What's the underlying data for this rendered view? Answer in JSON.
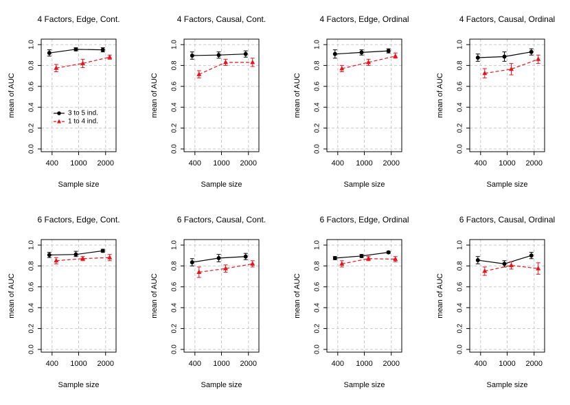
{
  "figure": {
    "ylabel": "mean of AUC",
    "xlabel": "Sample size"
  },
  "legend": {
    "entries": [
      {
        "label": "3 to 5 ind.",
        "color": "#000000",
        "marker": "circle"
      },
      {
        "label": "1 to 4 ind.",
        "color": "#e8121b",
        "marker": "triangle"
      }
    ]
  },
  "chart_data": [
    {
      "type": "line",
      "title": "4 Factors, Edge, Cont.",
      "xlabel": "Sample size",
      "ylabel": "mean of AUC",
      "categories": [
        "400",
        "1000",
        "2000"
      ],
      "ylim": [
        0,
        1
      ],
      "yticks": [
        "0.0",
        "0.2",
        "0.4",
        "0.6",
        "0.8",
        "1.0"
      ],
      "legend": "center-left",
      "series": [
        {
          "name": "3 to 5 ind.",
          "values": [
            0.92,
            0.955,
            0.95
          ],
          "lower": [
            0.89,
            0.94,
            0.93
          ],
          "upper": [
            0.95,
            0.97,
            0.97
          ]
        },
        {
          "name": "1 to 4 ind.",
          "values": [
            0.775,
            0.82,
            0.88
          ],
          "lower": [
            0.74,
            0.78,
            0.86
          ],
          "upper": [
            0.81,
            0.86,
            0.9
          ]
        }
      ]
    },
    {
      "type": "line",
      "title": "4 Factors, Causal, Cont.",
      "xlabel": "Sample size",
      "ylabel": "mean of AUC",
      "categories": [
        "400",
        "1000",
        "2000"
      ],
      "ylim": [
        0,
        1
      ],
      "yticks": [
        "0.0",
        "0.2",
        "0.4",
        "0.6",
        "0.8",
        "1.0"
      ],
      "series": [
        {
          "name": "3 to 5 ind.",
          "values": [
            0.895,
            0.9,
            0.91
          ],
          "lower": [
            0.86,
            0.87,
            0.88
          ],
          "upper": [
            0.93,
            0.93,
            0.94
          ]
        },
        {
          "name": "1 to 4 ind.",
          "values": [
            0.715,
            0.83,
            0.83
          ],
          "lower": [
            0.68,
            0.8,
            0.79
          ],
          "upper": [
            0.75,
            0.86,
            0.87
          ]
        }
      ]
    },
    {
      "type": "line",
      "title": "4 Factors, Edge, Ordinal",
      "xlabel": "Sample size",
      "ylabel": "mean of AUC",
      "categories": [
        "400",
        "1000",
        "2000"
      ],
      "ylim": [
        0,
        1
      ],
      "yticks": [
        "0.0",
        "0.2",
        "0.4",
        "0.6",
        "0.8",
        "1.0"
      ],
      "series": [
        {
          "name": "3 to 5 ind.",
          "values": [
            0.91,
            0.925,
            0.94
          ],
          "lower": [
            0.87,
            0.9,
            0.92
          ],
          "upper": [
            0.95,
            0.95,
            0.96
          ]
        },
        {
          "name": "1 to 4 ind.",
          "values": [
            0.77,
            0.83,
            0.89
          ],
          "lower": [
            0.74,
            0.8,
            0.87
          ],
          "upper": [
            0.8,
            0.86,
            0.92
          ]
        }
      ]
    },
    {
      "type": "line",
      "title": "4 Factors, Causal, Ordinal",
      "xlabel": "Sample size",
      "ylabel": "mean of AUC",
      "categories": [
        "400",
        "1000",
        "2000"
      ],
      "ylim": [
        0,
        1
      ],
      "yticks": [
        "0.0",
        "0.2",
        "0.4",
        "0.6",
        "0.8",
        "1.0"
      ],
      "series": [
        {
          "name": "3 to 5 ind.",
          "values": [
            0.875,
            0.885,
            0.93
          ],
          "lower": [
            0.84,
            0.84,
            0.9
          ],
          "upper": [
            0.91,
            0.93,
            0.96
          ]
        },
        {
          "name": "1 to 4 ind.",
          "values": [
            0.725,
            0.765,
            0.86
          ],
          "lower": [
            0.68,
            0.71,
            0.82
          ],
          "upper": [
            0.77,
            0.82,
            0.9
          ]
        }
      ]
    },
    {
      "type": "line",
      "title": "6 Factors, Edge, Cont.",
      "xlabel": "Sample size",
      "ylabel": "mean of AUC",
      "categories": [
        "400",
        "1000",
        "2000"
      ],
      "ylim": [
        0,
        1
      ],
      "yticks": [
        "0.0",
        "0.2",
        "0.4",
        "0.6",
        "0.8",
        "1.0"
      ],
      "series": [
        {
          "name": "3 to 5 ind.",
          "values": [
            0.905,
            0.91,
            0.945
          ],
          "lower": [
            0.88,
            0.89,
            0.93
          ],
          "upper": [
            0.93,
            0.94,
            0.96
          ]
        },
        {
          "name": "1 to 4 ind.",
          "values": [
            0.85,
            0.87,
            0.88
          ],
          "lower": [
            0.82,
            0.85,
            0.85
          ],
          "upper": [
            0.88,
            0.89,
            0.91
          ]
        }
      ]
    },
    {
      "type": "line",
      "title": "6 Factors, Causal, Cont.",
      "xlabel": "Sample size",
      "ylabel": "mean of AUC",
      "categories": [
        "400",
        "1000",
        "2000"
      ],
      "ylim": [
        0,
        1
      ],
      "yticks": [
        "0.0",
        "0.2",
        "0.4",
        "0.6",
        "0.8",
        "1.0"
      ],
      "series": [
        {
          "name": "3 to 5 ind.",
          "values": [
            0.835,
            0.875,
            0.89
          ],
          "lower": [
            0.8,
            0.84,
            0.86
          ],
          "upper": [
            0.87,
            0.91,
            0.92
          ]
        },
        {
          "name": "1 to 4 ind.",
          "values": [
            0.74,
            0.775,
            0.82
          ],
          "lower": [
            0.69,
            0.74,
            0.79
          ],
          "upper": [
            0.79,
            0.81,
            0.85
          ]
        }
      ]
    },
    {
      "type": "line",
      "title": "6 Factors, Edge, Ordinal",
      "xlabel": "Sample size",
      "ylabel": "mean of AUC",
      "categories": [
        "400",
        "1000",
        "2000"
      ],
      "ylim": [
        0,
        1
      ],
      "yticks": [
        "0.0",
        "0.2",
        "0.4",
        "0.6",
        "0.8",
        "1.0"
      ],
      "series": [
        {
          "name": "3 to 5 ind.",
          "values": [
            0.875,
            0.895,
            0.93
          ],
          "lower": [
            0.86,
            0.88,
            0.92
          ],
          "upper": [
            0.89,
            0.91,
            0.94
          ]
        },
        {
          "name": "1 to 4 ind.",
          "values": [
            0.82,
            0.87,
            0.865
          ],
          "lower": [
            0.79,
            0.85,
            0.84
          ],
          "upper": [
            0.85,
            0.89,
            0.89
          ]
        }
      ]
    },
    {
      "type": "line",
      "title": "6 Factors, Causal, Ordinal",
      "xlabel": "Sample size",
      "ylabel": "mean of AUC",
      "categories": [
        "400",
        "1000",
        "2000"
      ],
      "ylim": [
        0,
        1
      ],
      "yticks": [
        "0.0",
        "0.2",
        "0.4",
        "0.6",
        "0.8",
        "1.0"
      ],
      "series": [
        {
          "name": "3 to 5 ind.",
          "values": [
            0.855,
            0.82,
            0.9
          ],
          "lower": [
            0.82,
            0.79,
            0.87
          ],
          "upper": [
            0.89,
            0.85,
            0.93
          ]
        },
        {
          "name": "1 to 4 ind.",
          "values": [
            0.75,
            0.805,
            0.775
          ],
          "lower": [
            0.71,
            0.77,
            0.72
          ],
          "upper": [
            0.79,
            0.84,
            0.83
          ]
        }
      ]
    }
  ]
}
